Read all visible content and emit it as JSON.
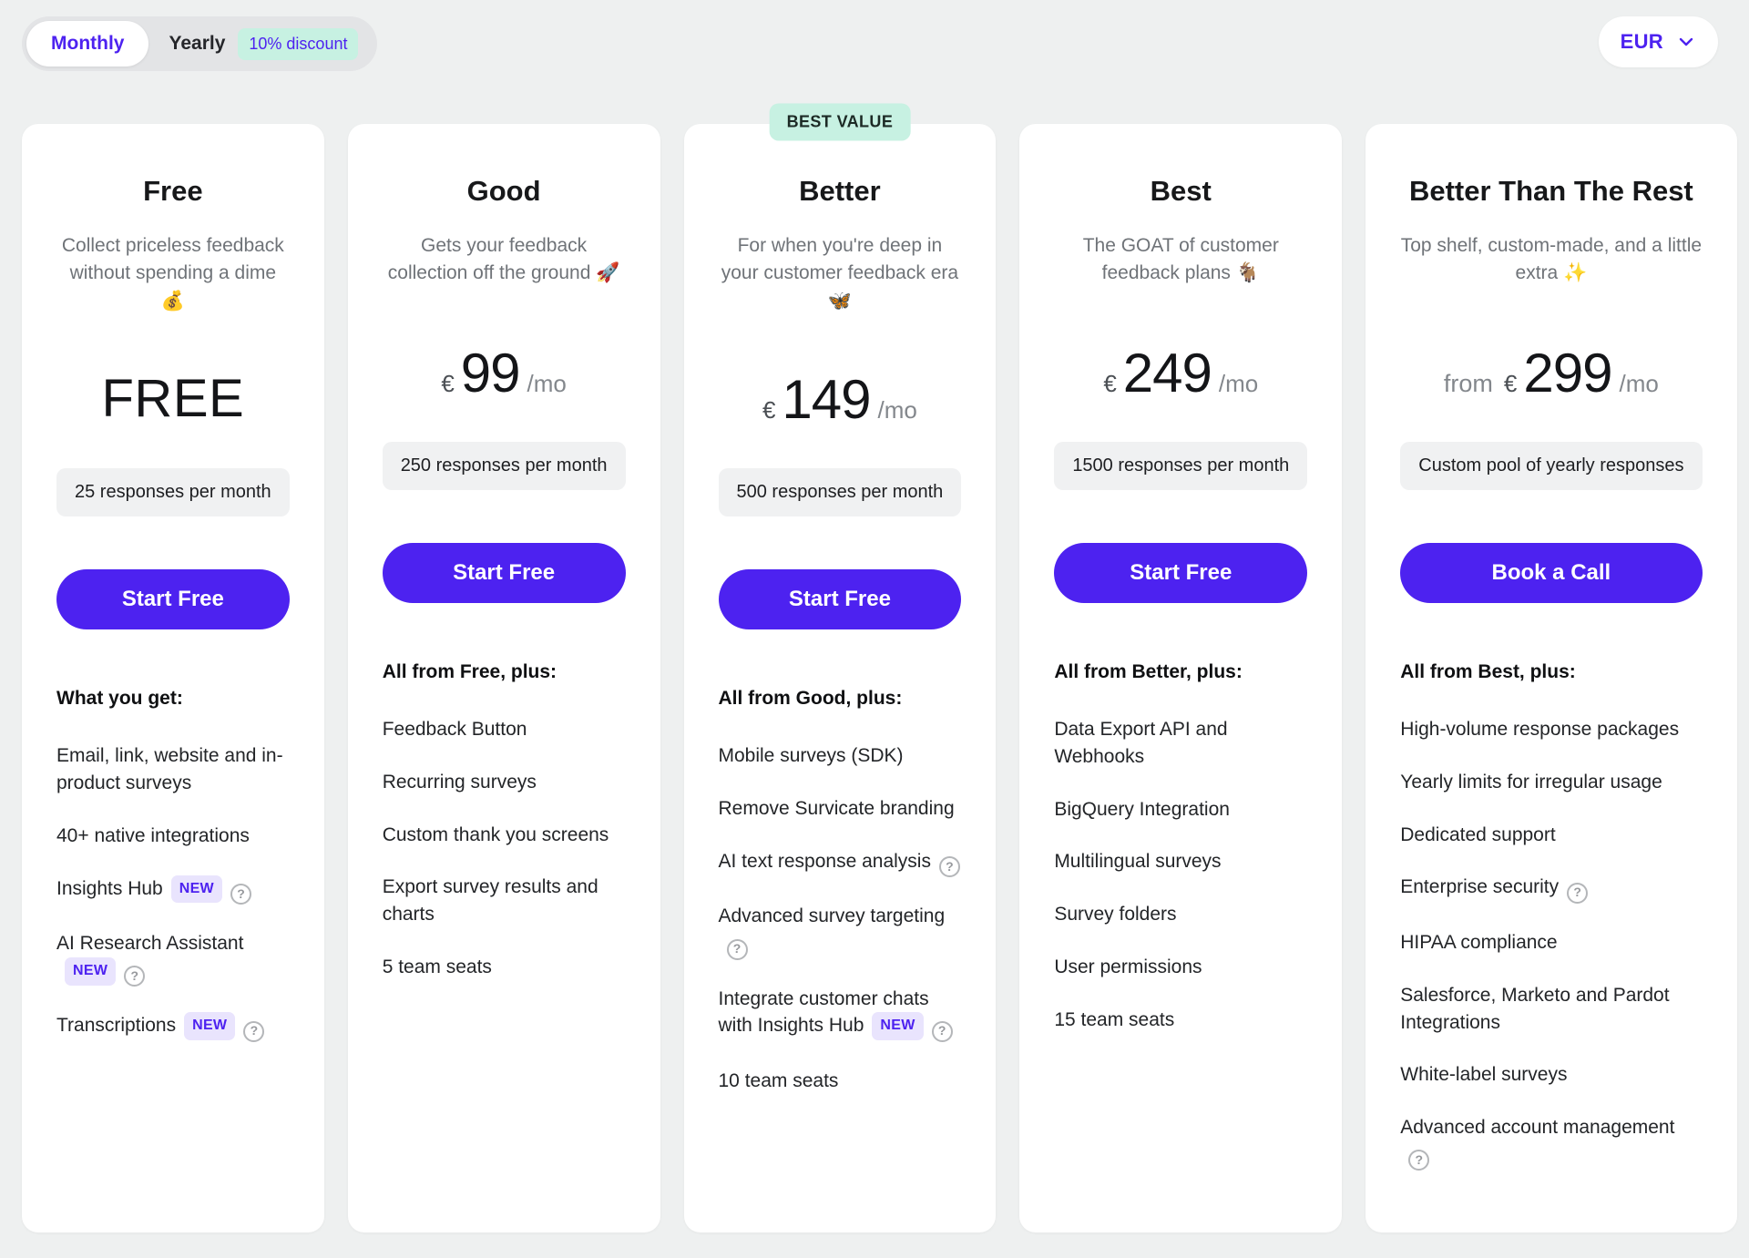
{
  "colors": {
    "accent_purple": "#4d22f0",
    "mint_badge": "#c7f1e2",
    "lavender_badge": "#e9e4fd",
    "page_background": "#eef0f0",
    "card_background": "#ffffff"
  },
  "labels": {
    "new_badge": "NEW",
    "best_value": "BEST VALUE"
  },
  "toolbar": {
    "billing": {
      "monthly": "Monthly",
      "yearly": "Yearly",
      "discount": "10% discount",
      "selected": "Monthly"
    },
    "currency": {
      "value": "EUR"
    }
  },
  "plans": [
    {
      "name": "Free",
      "description": "Collect priceless feedback without spending a dime 💰",
      "price": {
        "display": "FREE"
      },
      "responses": "25 responses per month",
      "cta": "Start Free",
      "features_heading": "What you get:",
      "features": [
        {
          "text": "Email, link, website and in-product surveys"
        },
        {
          "text": "40+ native integrations"
        },
        {
          "text": "Insights Hub",
          "new": true,
          "help": true
        },
        {
          "text": "AI Research Assistant",
          "new": true,
          "help": true
        },
        {
          "text": "Transcriptions",
          "new": true,
          "help": true
        }
      ]
    },
    {
      "name": "Good",
      "description": "Gets your feedback collection off the ground 🚀",
      "price": {
        "currency": "€",
        "amount": "99",
        "period": "/mo"
      },
      "responses": "250 responses per month",
      "cta": "Start Free",
      "features_heading": "All from Free, plus:",
      "features": [
        {
          "text": "Feedback Button"
        },
        {
          "text": "Recurring surveys"
        },
        {
          "text": "Custom thank you screens"
        },
        {
          "text": "Export survey results and charts"
        },
        {
          "text": "5 team seats"
        }
      ]
    },
    {
      "name": "Better",
      "highlight_badge": "BEST VALUE",
      "description": "For when you're deep in your customer feedback era 🦋",
      "price": {
        "currency": "€",
        "amount": "149",
        "period": "/mo"
      },
      "responses": "500 responses per month",
      "cta": "Start Free",
      "features_heading": "All from Good, plus:",
      "features": [
        {
          "text": "Mobile surveys (SDK)"
        },
        {
          "text": "Remove Survicate branding"
        },
        {
          "text": "AI text response analysis",
          "help": true
        },
        {
          "text": "Advanced survey targeting",
          "help": true
        },
        {
          "text": "Integrate customer chats with Insights Hub",
          "new": true,
          "help": true
        },
        {
          "text": "10 team seats"
        }
      ]
    },
    {
      "name": "Best",
      "description": "The GOAT of customer feedback plans 🐐",
      "price": {
        "currency": "€",
        "amount": "249",
        "period": "/mo"
      },
      "responses": "1500 responses per month",
      "cta": "Start Free",
      "features_heading": "All from Better, plus:",
      "features": [
        {
          "text": "Data Export API and Webhooks"
        },
        {
          "text": "BigQuery Integration"
        },
        {
          "text": "Multilingual surveys"
        },
        {
          "text": "Survey folders"
        },
        {
          "text": "User permissions"
        },
        {
          "text": "15 team seats"
        }
      ]
    },
    {
      "name": "Better Than The Rest",
      "description": "Top shelf, custom-made, and a little extra ✨",
      "price": {
        "prefix": "from",
        "currency": "€",
        "amount": "299",
        "period": "/mo"
      },
      "responses": "Custom pool of yearly responses",
      "cta": "Book a Call",
      "features_heading": "All from Best, plus:",
      "features": [
        {
          "text": "High-volume response packages"
        },
        {
          "text": "Yearly limits for irregular usage"
        },
        {
          "text": "Dedicated support"
        },
        {
          "text": "Enterprise security",
          "help": true
        },
        {
          "text": "HIPAA compliance"
        },
        {
          "text": "Salesforce, Marketo and Pardot Integrations"
        },
        {
          "text": "White-label surveys"
        },
        {
          "text": "Advanced account management",
          "help": true
        }
      ]
    }
  ]
}
